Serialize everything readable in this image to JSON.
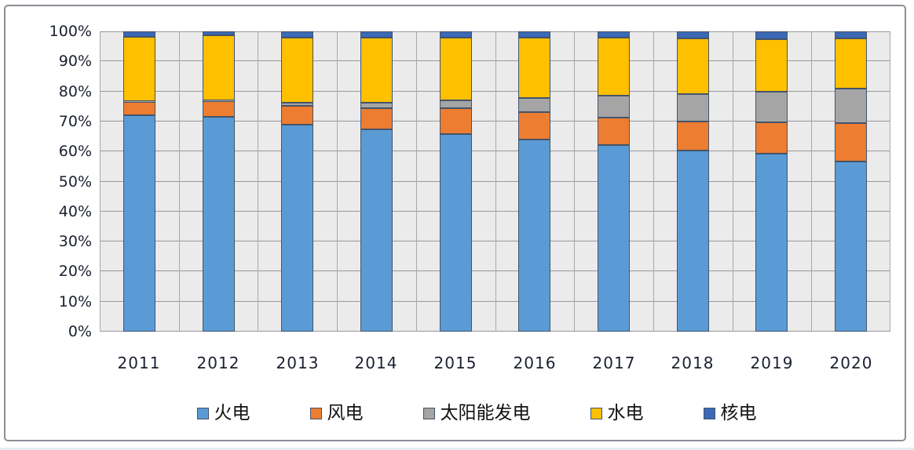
{
  "chart_data": {
    "type": "bar",
    "variant": "stacked-100-percent",
    "title": "",
    "xlabel": "",
    "ylabel": "",
    "ylim": [
      0,
      100
    ],
    "grid": true,
    "legend_position": "bottom",
    "categories": [
      "2011",
      "2012",
      "2013",
      "2014",
      "2015",
      "2016",
      "2017",
      "2018",
      "2019",
      "2020"
    ],
    "y_ticks": [
      "0%",
      "10%",
      "20%",
      "30%",
      "40%",
      "50%",
      "60%",
      "70%",
      "80%",
      "90%",
      "100%"
    ],
    "series": [
      {
        "name": "火电",
        "color": "#5B9BD5",
        "values": [
          72.0,
          71.5,
          69.0,
          67.4,
          65.7,
          64.0,
          62.2,
          60.2,
          59.2,
          56.6
        ]
      },
      {
        "name": "风电",
        "color": "#ED7D31",
        "values": [
          4.5,
          5.3,
          6.1,
          7.0,
          8.6,
          9.0,
          9.2,
          9.7,
          10.4,
          12.8
        ]
      },
      {
        "name": "太阳能发电",
        "color": "#A5A5A5",
        "values": [
          0.2,
          0.3,
          1.2,
          1.8,
          2.8,
          4.7,
          7.3,
          9.2,
          10.2,
          11.5
        ]
      },
      {
        "name": "水电",
        "color": "#FFC000",
        "values": [
          21.5,
          21.5,
          21.7,
          21.8,
          20.9,
          20.3,
          19.3,
          18.5,
          17.7,
          16.8
        ]
      },
      {
        "name": "核电",
        "color": "#3B69B5",
        "values": [
          1.8,
          1.4,
          2.0,
          2.0,
          2.0,
          2.0,
          2.0,
          2.4,
          2.5,
          2.3
        ]
      }
    ],
    "colors": {
      "plot_background": "#EBEBEB",
      "gridline": "#98989E",
      "segment_border": "#44546A",
      "frame_border": "#8D8D99",
      "axis_text": "#1B2030"
    }
  }
}
